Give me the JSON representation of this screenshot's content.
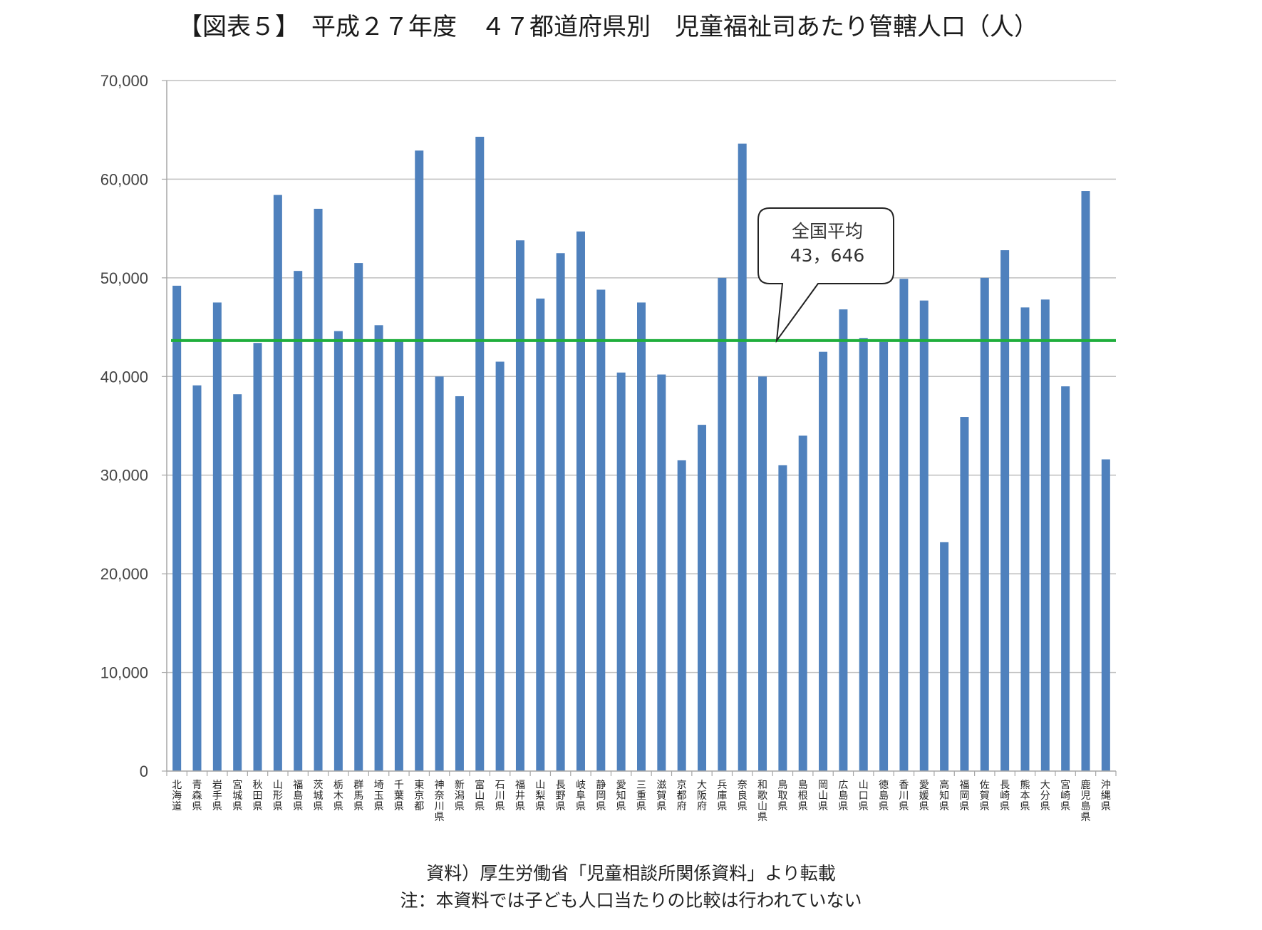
{
  "title": "【図表５】　平成２７年度　４７都道府県別　児童福祉司あたり管轄人口（人）",
  "source_note": "資料）厚生労働省「児童相談所関係資料」より転載",
  "footnote": "注：本資料では子ども人口当たりの比較は行われていない",
  "callout": {
    "label": "全国平均",
    "value_text": "43，646"
  },
  "colors": {
    "bar": "#4f81bd",
    "average_line": "#1fae3c",
    "grid": "#bfbfbf",
    "axis": "#a6a6a6"
  },
  "chart_data": {
    "type": "bar",
    "title": "【図表５】　平成２７年度　４７都道府県別　児童福祉司あたり管轄人口（人）",
    "xlabel": "",
    "ylabel": "",
    "ylim": [
      0,
      70000
    ],
    "yticks": [
      0,
      10000,
      20000,
      30000,
      40000,
      50000,
      60000,
      70000
    ],
    "ytick_labels": [
      "0",
      "10,000",
      "20,000",
      "30,000",
      "40,000",
      "50,000",
      "60,000",
      "70,000"
    ],
    "grid": true,
    "legend": "none",
    "categories": [
      "北海道",
      "青森県",
      "岩手県",
      "宮城県",
      "秋田県",
      "山形県",
      "福島県",
      "茨城県",
      "栃木県",
      "群馬県",
      "埼玉県",
      "千葉県",
      "東京都",
      "神奈川県",
      "新潟県",
      "富山県",
      "石川県",
      "福井県",
      "山梨県",
      "長野県",
      "岐阜県",
      "静岡県",
      "愛知県",
      "三重県",
      "滋賀県",
      "京都府",
      "大阪府",
      "兵庫県",
      "奈良県",
      "和歌山県",
      "鳥取県",
      "島根県",
      "岡山県",
      "広島県",
      "山口県",
      "徳島県",
      "香川県",
      "愛媛県",
      "高知県",
      "福岡県",
      "佐賀県",
      "長崎県",
      "熊本県",
      "大分県",
      "宮崎県",
      "鹿児島県",
      "沖縄県"
    ],
    "values": [
      49200,
      39100,
      47500,
      38200,
      43400,
      58400,
      50700,
      57000,
      44600,
      51500,
      45200,
      43600,
      62900,
      40000,
      38000,
      64300,
      41500,
      53800,
      47900,
      52500,
      54700,
      48800,
      40400,
      47500,
      40200,
      31500,
      35100,
      50000,
      63600,
      40000,
      31000,
      34000,
      42500,
      46800,
      43900,
      43500,
      49900,
      47700,
      23200,
      35900,
      50000,
      52800,
      47000,
      47800,
      39000,
      58800,
      31600
    ],
    "reference_line": {
      "name": "全国平均",
      "value": 43646
    }
  }
}
